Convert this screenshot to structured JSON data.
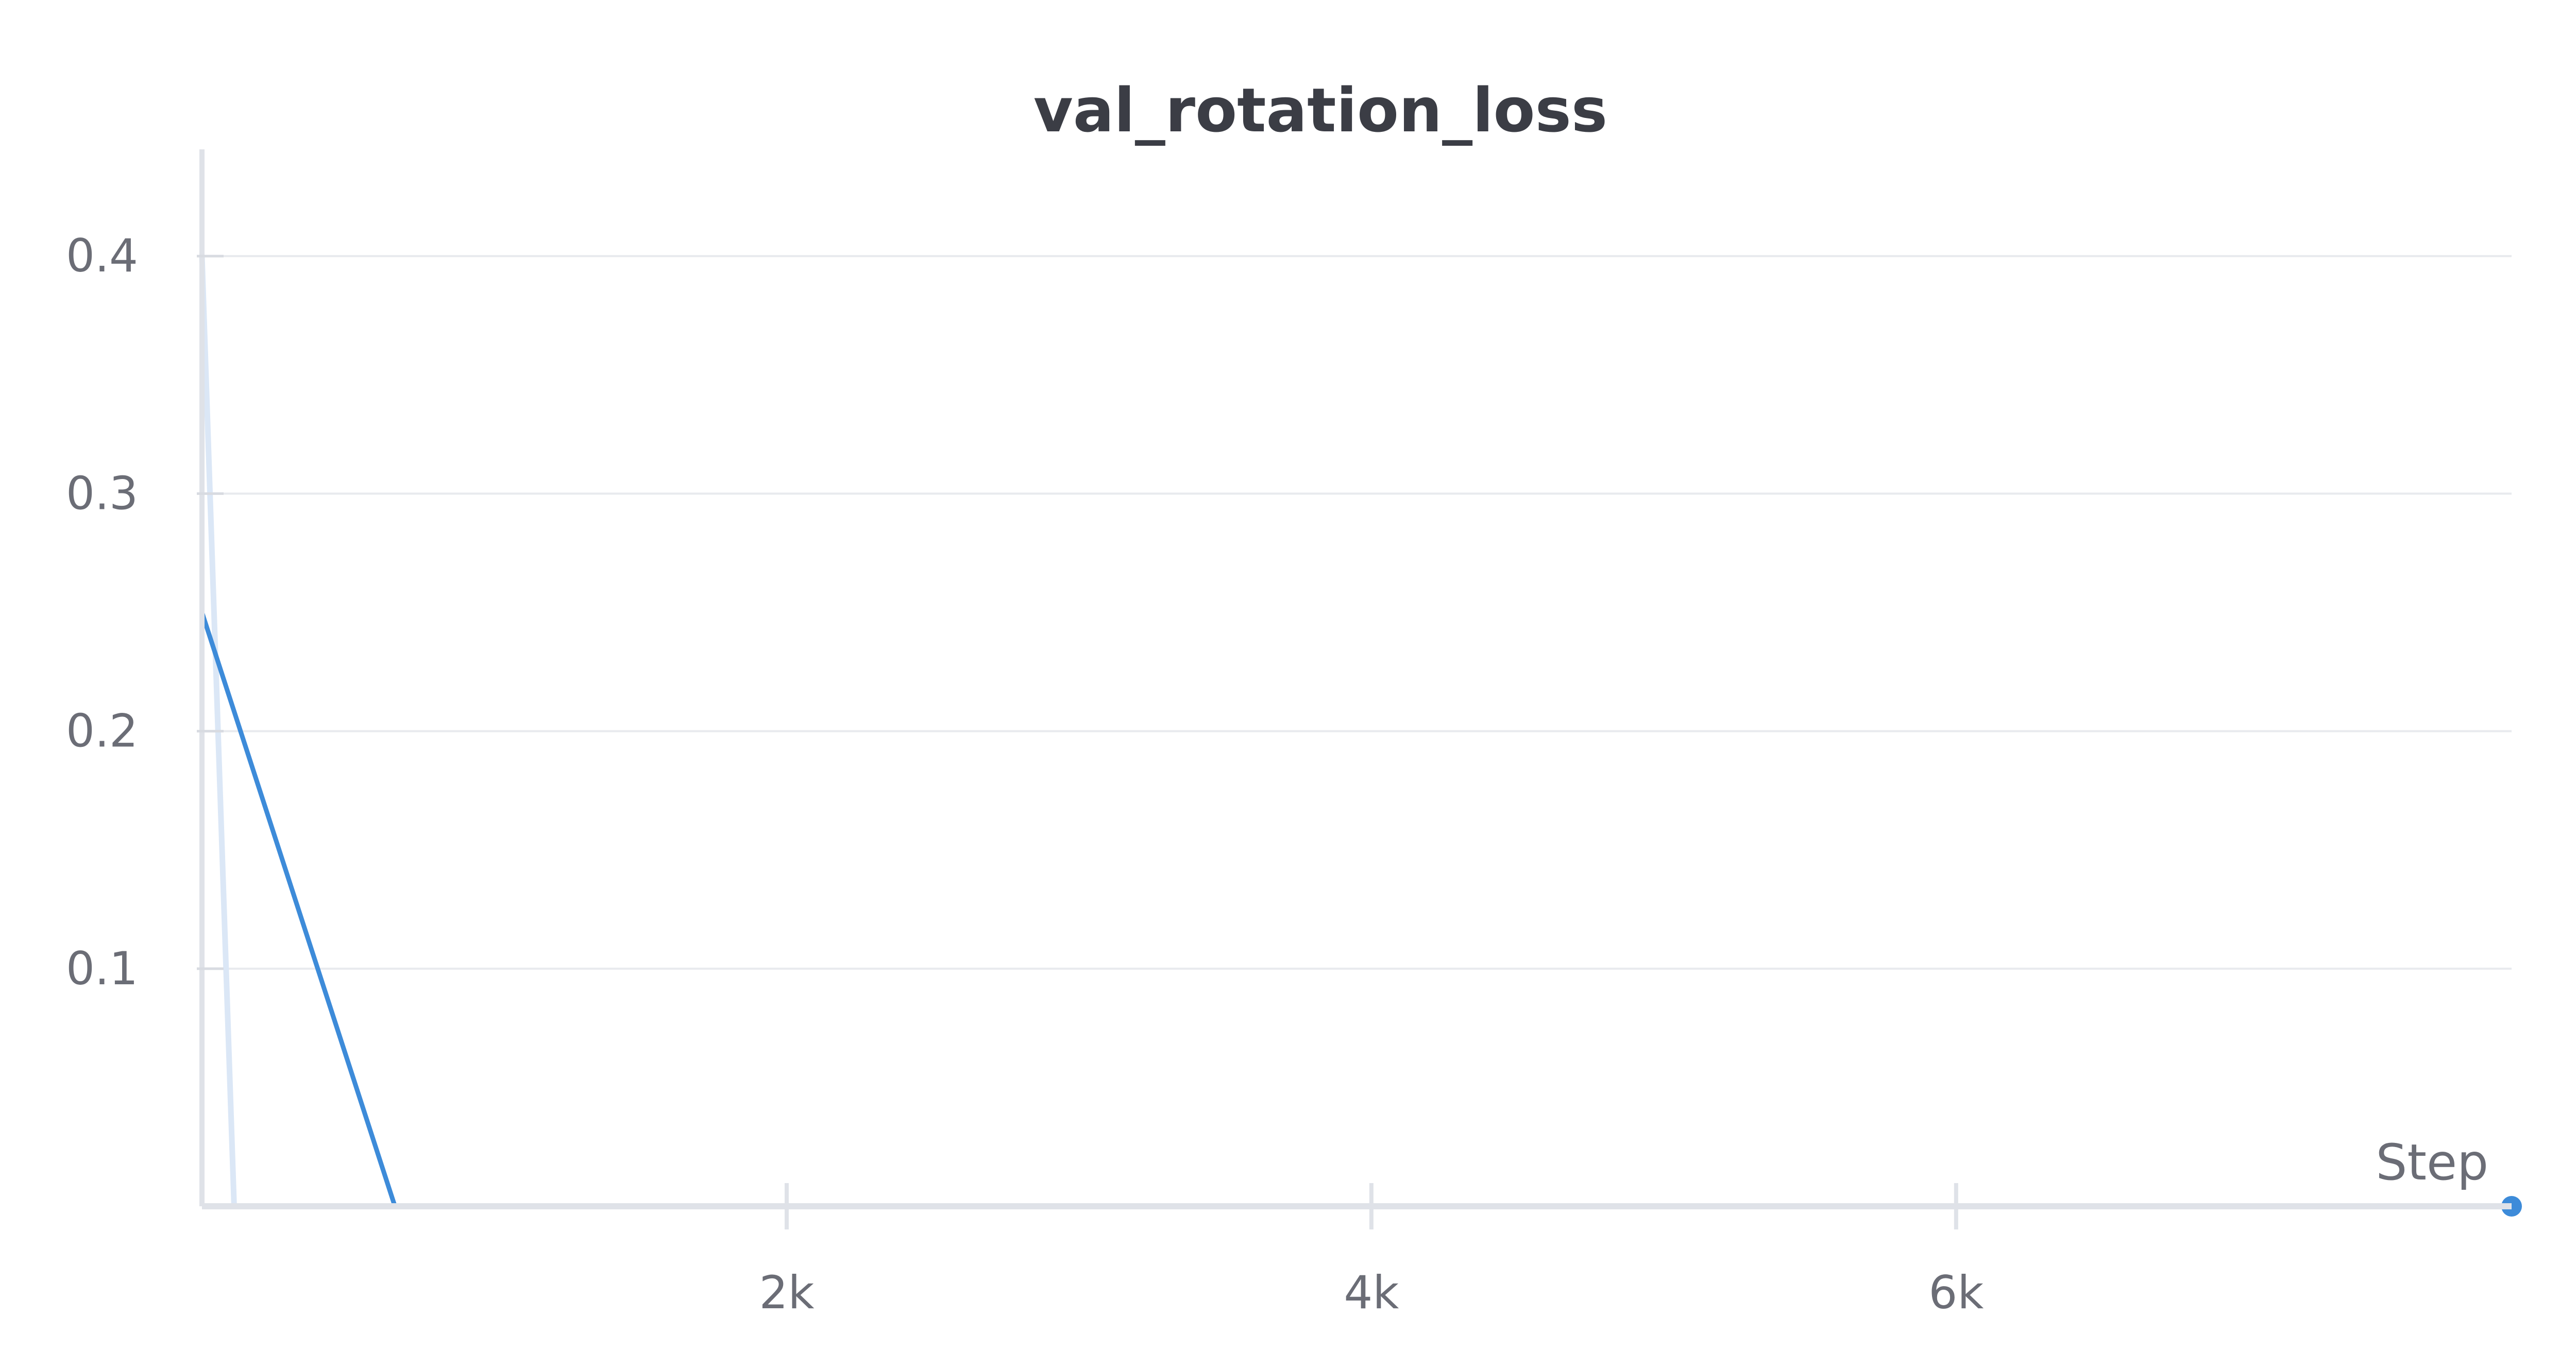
{
  "chart_data": {
    "type": "line",
    "title": "val_rotation_loss",
    "xlabel": "Step",
    "ylabel": "",
    "xlim": [
      0,
      7900
    ],
    "ylim": [
      0,
      0.42
    ],
    "x_ticks": [
      2000,
      4000,
      6000
    ],
    "x_tick_labels": [
      "2k",
      "4k",
      "6k"
    ],
    "y_ticks": [
      0.1,
      0.2,
      0.3,
      0.4
    ],
    "y_tick_labels": [
      "0.1",
      "0.2",
      "0.3",
      "0.4"
    ],
    "grid": true,
    "legend": false,
    "series": [
      {
        "color": "#dbe7f6",
        "x": [
          0,
          110,
          7900
        ],
        "y": [
          0.4,
          0.0,
          0.0
        ]
      },
      {
        "color": "#3d8bd9",
        "x": [
          0,
          660,
          7900
        ],
        "y": [
          0.25,
          0.0,
          0.0
        ]
      }
    ],
    "end_marker": {
      "x": 7900,
      "y": 0.0,
      "color": "#3d8bd9"
    }
  }
}
